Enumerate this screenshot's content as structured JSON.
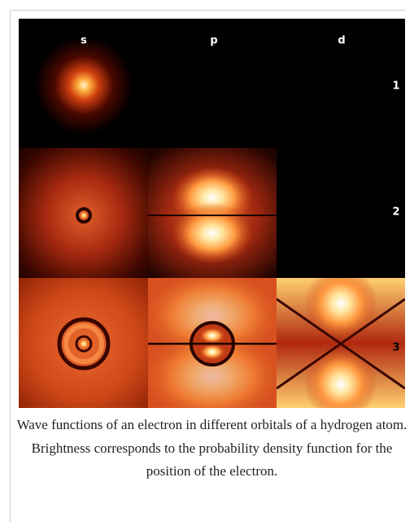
{
  "figure": {
    "column_labels": [
      "s",
      "p",
      "d"
    ],
    "row_labels": [
      "1",
      "2",
      "3"
    ],
    "caption": "Wave functions of an electron in different orbitals of a hydrogen atom. Brightness corresponds to the probability density function for the position of the electron."
  }
}
